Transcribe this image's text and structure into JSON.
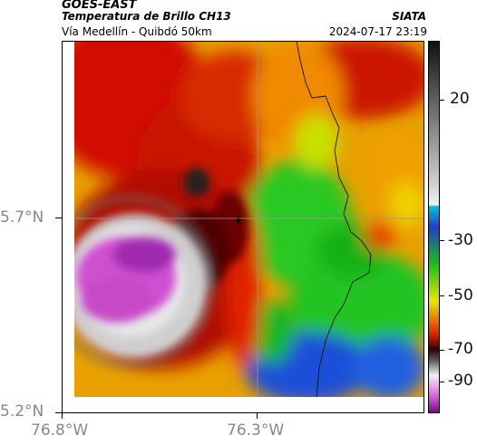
{
  "header": {
    "satellite": "GOES-EAST",
    "product": "Temperatura de Brillo CH13",
    "location": "Vía Medellín - Quibdó 50km",
    "organization": "SIATA",
    "datetime": "2024-07-17 23:19"
  },
  "axes": {
    "lat_labels": [
      "5.7°N",
      "5.2°N"
    ],
    "lon_labels": [
      "76.8°W",
      "76.3°W"
    ]
  },
  "colorbar": {
    "tick_labels": [
      "20",
      "-30",
      "-50",
      "-70",
      "-90"
    ],
    "colors": [
      "#1a1a1a",
      "#9a9a9a",
      "#00bcd4",
      "#1f4fd6",
      "#17c317",
      "#ecec00",
      "#e02200",
      "#420000",
      "#7a0a8c",
      "#e070e0"
    ]
  },
  "map": {
    "marker_icon": "star-icon"
  }
}
